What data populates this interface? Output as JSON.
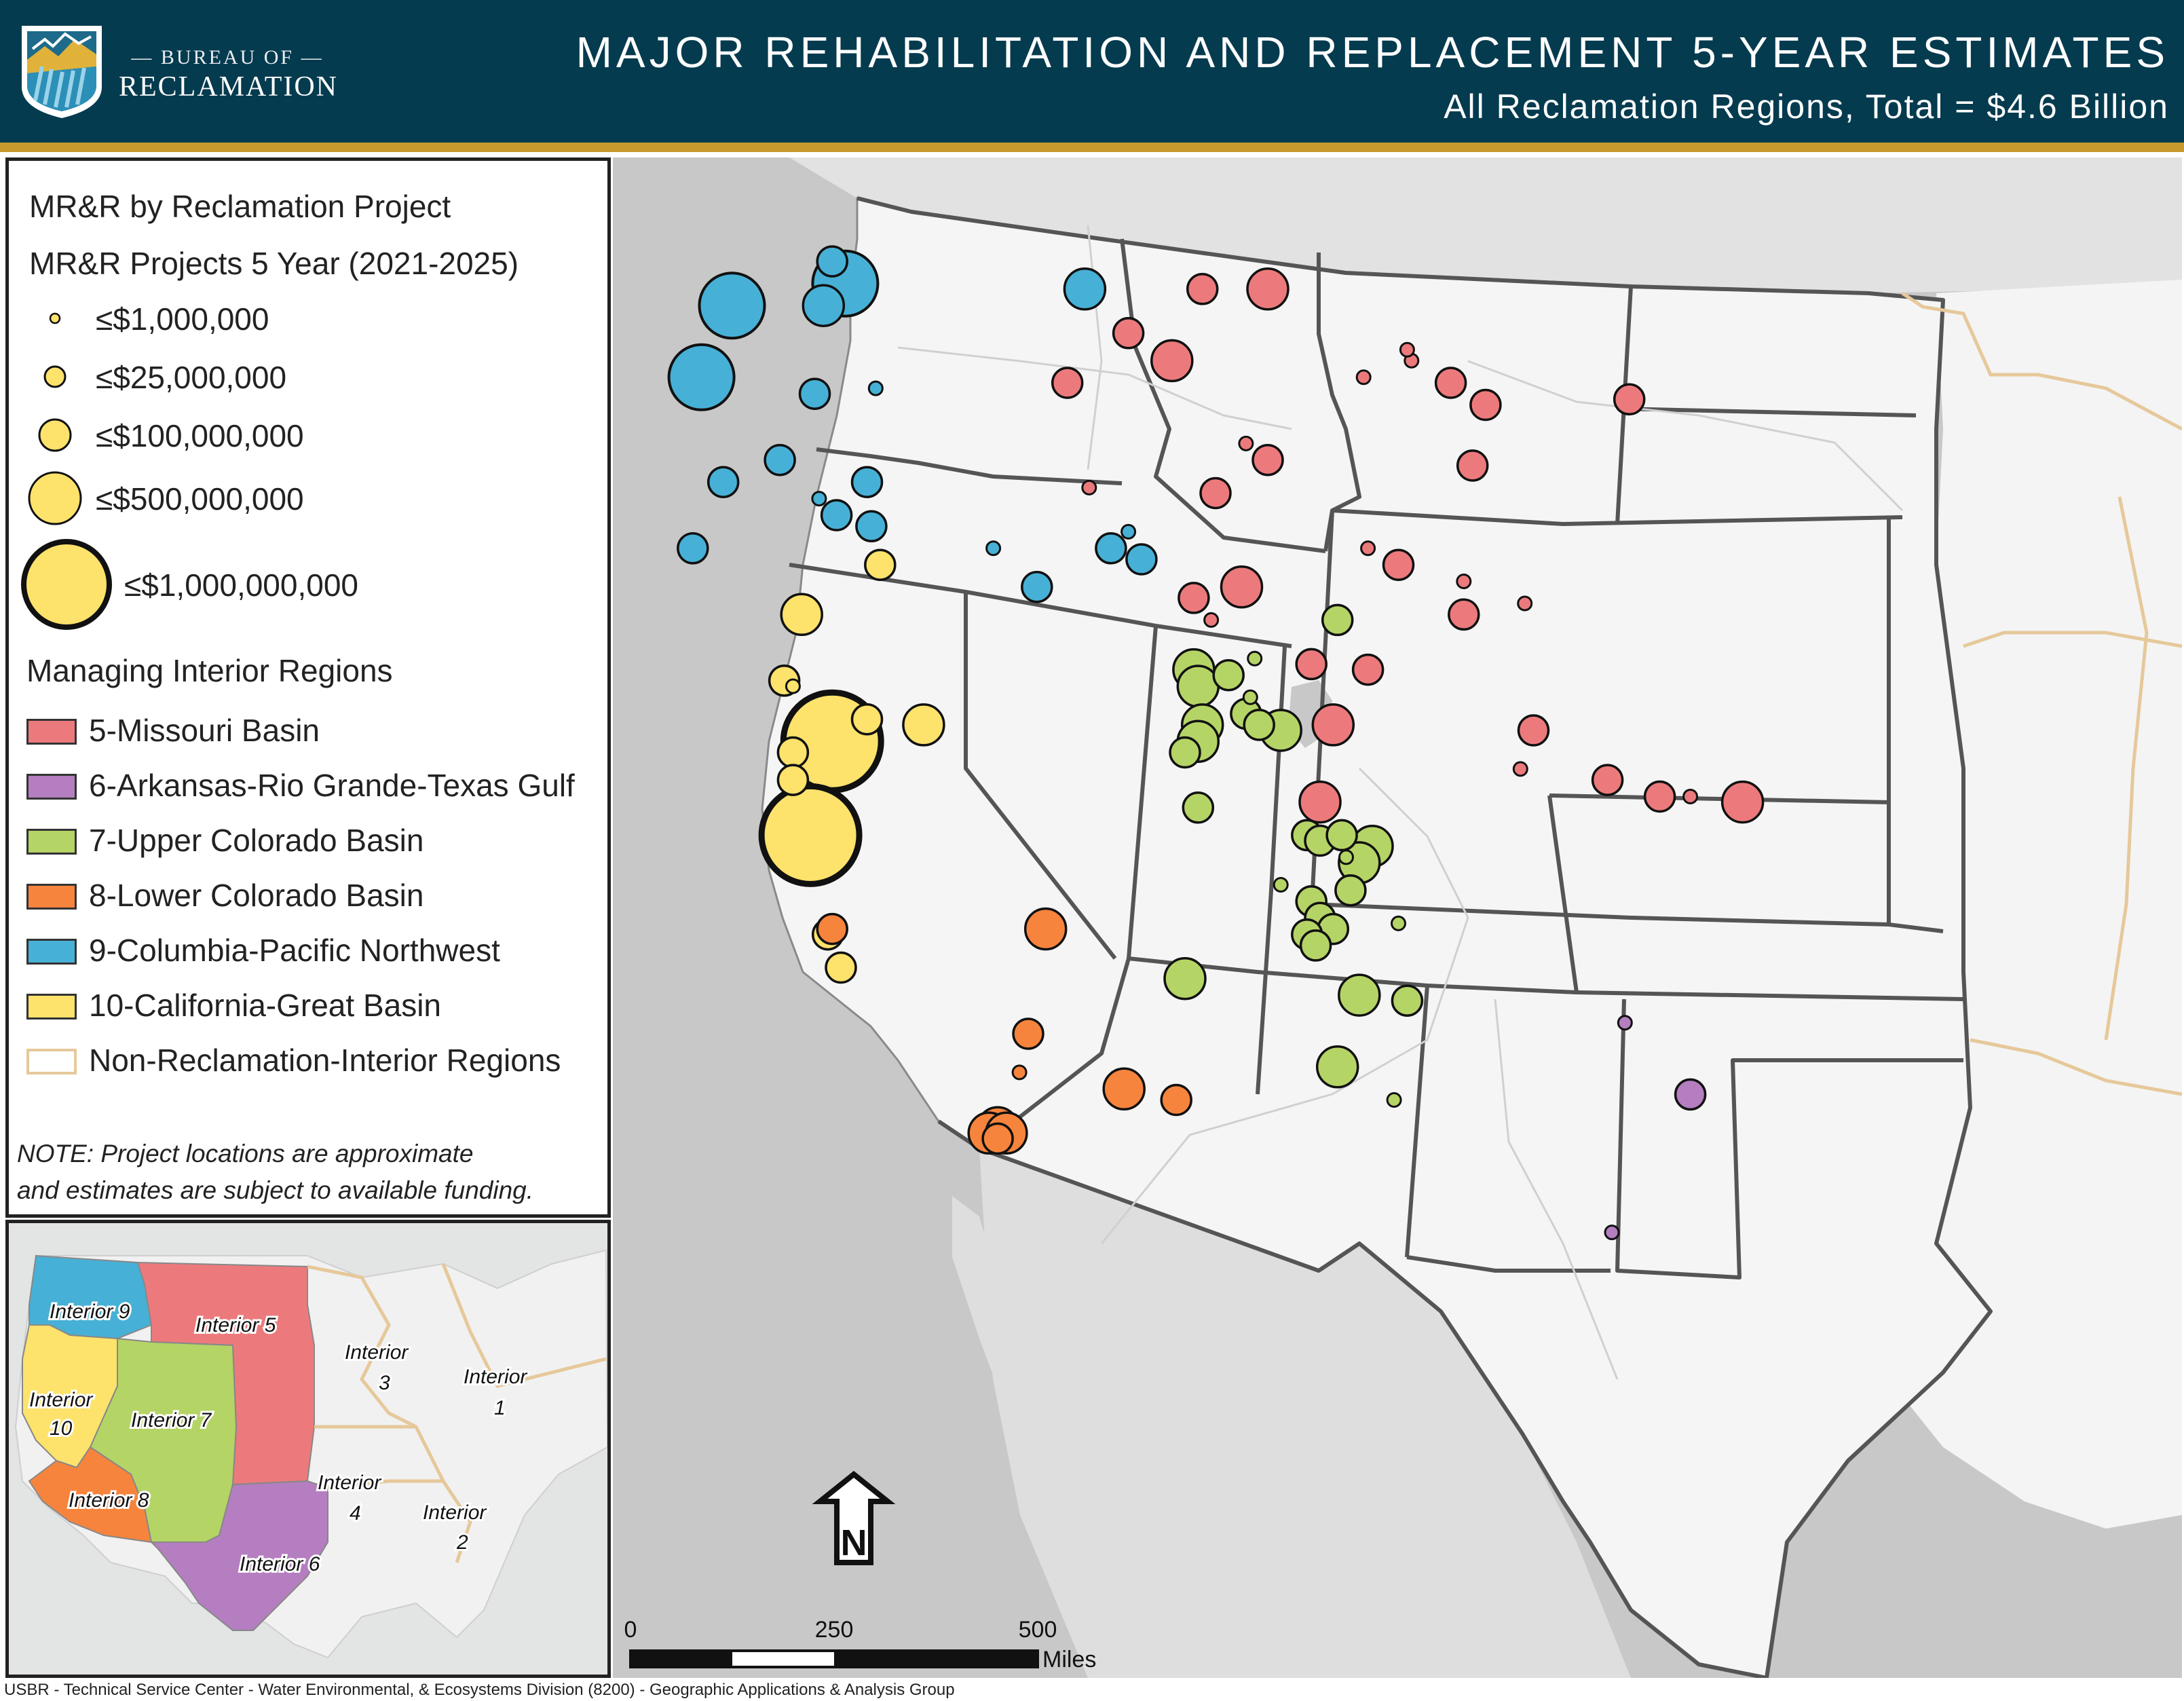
{
  "header": {
    "agency_top": "— BUREAU OF —",
    "agency_name": "RECLAMATION",
    "title": "MAJOR REHABILITATION AND REPLACEMENT 5-YEAR ESTIMATES",
    "subtitle": "All Reclamation Regions, Total = $4.6 Billion",
    "background_color": "#053b4f",
    "accent_color": "#c79a2d"
  },
  "legend": {
    "title": "MR&R by Reclamation Project",
    "subtitle": "MR&R Projects 5 Year (2021-2025)",
    "size_classes": [
      "≤$1,000,000",
      "≤$25,000,000",
      "≤$100,000,000",
      "≤$500,000,000",
      "≤$1,000,000,000"
    ],
    "regions_title": "Managing Interior Regions",
    "regions": [
      {
        "label": "5-Missouri Basin",
        "color": "#ec7a7c"
      },
      {
        "label": "6-Arkansas-Rio Grande-Texas Gulf",
        "color": "#b47ec0"
      },
      {
        "label": "7-Upper Colorado Basin",
        "color": "#b5d466"
      },
      {
        "label": "8-Lower Colorado Basin",
        "color": "#f7843c"
      },
      {
        "label": "9-Columbia-Pacific Northwest",
        "color": "#47b0d6"
      },
      {
        "label": "10-California-Great Basin",
        "color": "#fde26c"
      },
      {
        "label": "Non-Reclamation-Interior Regions",
        "color": "#e6c89a"
      }
    ],
    "note_line1": "NOTE: Project locations are approximate",
    "note_line2": "and estimates are subject to available funding."
  },
  "inset_labels": {
    "interior_9": "Interior 9",
    "interior_5": "Interior 5",
    "interior_3": "Interior",
    "interior_3_num": "3",
    "interior_1": "Interior",
    "interior_1_num": "1",
    "interior_10": "Interior",
    "interior_10_num": "10",
    "interior_7": "Interior 7",
    "interior_8": "Interior 8",
    "interior_4": "Interior",
    "interior_4_num": "4",
    "interior_2": "Interior",
    "interior_2_num": "2",
    "interior_6": "Interior 6"
  },
  "scale_bar": {
    "tick_0": "0",
    "tick_250": "250",
    "tick_500": "500",
    "unit": "Miles"
  },
  "north_arrow_label": "N",
  "credit": "USBR - Technical Service Center - Water Environmental, & Ecosystems Division (8200) - Geographic Applications & Analysis Group",
  "map_points": [
    {
      "region": 9,
      "size": 4,
      "lat": 47.9,
      "lon": -123.7
    },
    {
      "region": 9,
      "size": 2,
      "lat": 48.7,
      "lon": -121.4
    },
    {
      "region": 9,
      "size": 4,
      "lat": 48.3,
      "lon": -121.1
    },
    {
      "region": 9,
      "size": 3,
      "lat": 47.9,
      "lon": -121.6
    },
    {
      "region": 9,
      "size": 4,
      "lat": 46.6,
      "lon": -124.4
    },
    {
      "region": 9,
      "size": 2,
      "lat": 46.3,
      "lon": -121.8
    },
    {
      "region": 9,
      "size": 1,
      "lat": 46.4,
      "lon": -120.4
    },
    {
      "region": 9,
      "size": 3,
      "lat": 48.2,
      "lon": -115.6
    },
    {
      "region": 9,
      "size": 2,
      "lat": 45.1,
      "lon": -122.6
    },
    {
      "region": 9,
      "size": 2,
      "lat": 44.7,
      "lon": -123.9
    },
    {
      "region": 9,
      "size": 2,
      "lat": 44.7,
      "lon": -120.6
    },
    {
      "region": 9,
      "size": 1,
      "lat": 44.4,
      "lon": -121.7
    },
    {
      "region": 9,
      "size": 2,
      "lat": 44.1,
      "lon": -121.3
    },
    {
      "region": 9,
      "size": 2,
      "lat": 43.9,
      "lon": -120.5
    },
    {
      "region": 9,
      "size": 1,
      "lat": 43.5,
      "lon": -117.7
    },
    {
      "region": 9,
      "size": 2,
      "lat": 43.5,
      "lon": -115.0
    },
    {
      "region": 9,
      "size": 1,
      "lat": 43.8,
      "lon": -114.6
    },
    {
      "region": 9,
      "size": 2,
      "lat": 43.3,
      "lon": -114.3
    },
    {
      "region": 9,
      "size": 2,
      "lat": 42.8,
      "lon": -116.7
    },
    {
      "region": 9,
      "size": 2,
      "lat": 43.5,
      "lon": -124.6
    },
    {
      "region": 5,
      "size": 2,
      "lat": 48.2,
      "lon": -112.9
    },
    {
      "region": 5,
      "size": 3,
      "lat": 48.2,
      "lon": -111.4
    },
    {
      "region": 5,
      "size": 2,
      "lat": 47.4,
      "lon": -114.6
    },
    {
      "region": 5,
      "size": 3,
      "lat": 46.9,
      "lon": -113.6
    },
    {
      "region": 5,
      "size": 2,
      "lat": 46.5,
      "lon": -116.0
    },
    {
      "region": 5,
      "size": 1,
      "lat": 46.9,
      "lon": -108.1
    },
    {
      "region": 5,
      "size": 1,
      "lat": 47.1,
      "lon": -108.2
    },
    {
      "region": 5,
      "size": 1,
      "lat": 46.6,
      "lon": -109.2
    },
    {
      "region": 5,
      "size": 2,
      "lat": 46.5,
      "lon": -107.2
    },
    {
      "region": 5,
      "size": 2,
      "lat": 46.1,
      "lon": -106.4
    },
    {
      "region": 5,
      "size": 2,
      "lat": 46.2,
      "lon": -103.1
    },
    {
      "region": 5,
      "size": 1,
      "lat": 45.4,
      "lon": -111.9
    },
    {
      "region": 5,
      "size": 2,
      "lat": 45.1,
      "lon": -111.4
    },
    {
      "region": 5,
      "size": 1,
      "lat": 44.6,
      "lon": -115.5
    },
    {
      "region": 5,
      "size": 2,
      "lat": 44.5,
      "lon": -112.6
    },
    {
      "region": 5,
      "size": 2,
      "lat": 45.0,
      "lon": -106.7
    },
    {
      "region": 5,
      "size": 2,
      "lat": 43.2,
      "lon": -108.4
    },
    {
      "region": 5,
      "size": 1,
      "lat": 43.5,
      "lon": -109.1
    },
    {
      "region": 5,
      "size": 2,
      "lat": 42.6,
      "lon": -113.1
    },
    {
      "region": 5,
      "size": 3,
      "lat": 42.8,
      "lon": -112.0
    },
    {
      "region": 5,
      "size": 1,
      "lat": 42.2,
      "lon": -112.7
    },
    {
      "region": 5,
      "size": 2,
      "lat": 41.4,
      "lon": -110.4
    },
    {
      "region": 5,
      "size": 2,
      "lat": 41.3,
      "lon": -109.1
    },
    {
      "region": 5,
      "size": 1,
      "lat": 42.9,
      "lon": -106.9
    },
    {
      "region": 5,
      "size": 1,
      "lat": 42.5,
      "lon": -105.5
    },
    {
      "region": 5,
      "size": 2,
      "lat": 42.3,
      "lon": -106.9
    },
    {
      "region": 5,
      "size": 3,
      "lat": 40.3,
      "lon": -109.9
    },
    {
      "region": 5,
      "size": 2,
      "lat": 40.2,
      "lon": -105.3
    },
    {
      "region": 5,
      "size": 1,
      "lat": 39.5,
      "lon": -105.6
    },
    {
      "region": 5,
      "size": 2,
      "lat": 39.3,
      "lon": -103.6
    },
    {
      "region": 5,
      "size": 2,
      "lat": 39.0,
      "lon": -102.4
    },
    {
      "region": 5,
      "size": 1,
      "lat": 39.0,
      "lon": -101.7
    },
    {
      "region": 5,
      "size": 3,
      "lat": 38.9,
      "lon": -100.5
    },
    {
      "region": 5,
      "size": 3,
      "lat": 38.9,
      "lon": -110.2
    },
    {
      "region": 7,
      "size": 3,
      "lat": 41.3,
      "lon": -113.1
    },
    {
      "region": 7,
      "size": 3,
      "lat": 41.0,
      "lon": -113.0
    },
    {
      "region": 7,
      "size": 1,
      "lat": 40.8,
      "lon": -111.8
    },
    {
      "region": 7,
      "size": 2,
      "lat": 41.2,
      "lon": -112.3
    },
    {
      "region": 7,
      "size": 1,
      "lat": 41.5,
      "lon": -111.7
    },
    {
      "region": 7,
      "size": 2,
      "lat": 40.5,
      "lon": -111.9
    },
    {
      "region": 7,
      "size": 2,
      "lat": 40.3,
      "lon": -111.6
    },
    {
      "region": 7,
      "size": 3,
      "lat": 40.2,
      "lon": -111.1
    },
    {
      "region": 7,
      "size": 3,
      "lat": 40.3,
      "lon": -112.9
    },
    {
      "region": 7,
      "size": 3,
      "lat": 40.0,
      "lon": -113.0
    },
    {
      "region": 7,
      "size": 2,
      "lat": 39.8,
      "lon": -113.3
    },
    {
      "region": 7,
      "size": 2,
      "lat": 38.8,
      "lon": -113.0
    },
    {
      "region": 7,
      "size": 2,
      "lat": 42.2,
      "lon": -109.8
    },
    {
      "region": 7,
      "size": 2,
      "lat": 38.3,
      "lon": -110.5
    },
    {
      "region": 7,
      "size": 2,
      "lat": 38.2,
      "lon": -110.2
    },
    {
      "region": 7,
      "size": 2,
      "lat": 38.3,
      "lon": -109.7
    },
    {
      "region": 7,
      "size": 3,
      "lat": 38.1,
      "lon": -109.0
    },
    {
      "region": 7,
      "size": 1,
      "lat": 37.9,
      "lon": -109.6
    },
    {
      "region": 7,
      "size": 3,
      "lat": 37.8,
      "lon": -109.3
    },
    {
      "region": 7,
      "size": 1,
      "lat": 37.4,
      "lon": -111.1
    },
    {
      "region": 7,
      "size": 2,
      "lat": 37.3,
      "lon": -109.5
    },
    {
      "region": 7,
      "size": 2,
      "lat": 37.1,
      "lon": -110.4
    },
    {
      "region": 7,
      "size": 2,
      "lat": 36.8,
      "lon": -110.2
    },
    {
      "region": 7,
      "size": 2,
      "lat": 36.6,
      "lon": -109.9
    },
    {
      "region": 7,
      "size": 2,
      "lat": 36.5,
      "lon": -110.5
    },
    {
      "region": 7,
      "size": 2,
      "lat": 36.3,
      "lon": -110.3
    },
    {
      "region": 7,
      "size": 1,
      "lat": 36.7,
      "lon": -108.4
    },
    {
      "region": 7,
      "size": 3,
      "lat": 35.7,
      "lon": -113.3
    },
    {
      "region": 7,
      "size": 3,
      "lat": 35.4,
      "lon": -109.3
    },
    {
      "region": 7,
      "size": 2,
      "lat": 35.3,
      "lon": -108.2
    },
    {
      "region": 7,
      "size": 3,
      "lat": 34.1,
      "lon": -109.8
    },
    {
      "region": 7,
      "size": 1,
      "lat": 33.5,
      "lon": -108.5
    },
    {
      "region": 10,
      "size": 2,
      "lat": 43.2,
      "lon": -120.3
    },
    {
      "region": 10,
      "size": 3,
      "lat": 42.3,
      "lon": -122.1
    },
    {
      "region": 10,
      "size": 2,
      "lat": 41.1,
      "lon": -122.5
    },
    {
      "region": 10,
      "size": 1,
      "lat": 41.0,
      "lon": -122.3
    },
    {
      "region": 10,
      "size": 5,
      "lat": 40.0,
      "lon": -121.4
    },
    {
      "region": 10,
      "size": 2,
      "lat": 40.4,
      "lon": -120.6
    },
    {
      "region": 10,
      "size": 3,
      "lat": 40.3,
      "lon": -119.3
    },
    {
      "region": 10,
      "size": 2,
      "lat": 39.8,
      "lon": -122.3
    },
    {
      "region": 10,
      "size": 2,
      "lat": 39.3,
      "lon": -122.3
    },
    {
      "region": 10,
      "size": 5,
      "lat": 38.3,
      "lon": -121.9
    },
    {
      "region": 10,
      "size": 2,
      "lat": 36.5,
      "lon": -121.5
    },
    {
      "region": 10,
      "size": 2,
      "lat": 35.9,
      "lon": -121.2
    },
    {
      "region": 8,
      "size": 2,
      "lat": 36.6,
      "lon": -121.4
    },
    {
      "region": 8,
      "size": 3,
      "lat": 36.6,
      "lon": -116.5
    },
    {
      "region": 8,
      "size": 2,
      "lat": 34.7,
      "lon": -116.9
    },
    {
      "region": 8,
      "size": 1,
      "lat": 34.0,
      "lon": -117.1
    },
    {
      "region": 8,
      "size": 3,
      "lat": 33.7,
      "lon": -114.7
    },
    {
      "region": 8,
      "size": 2,
      "lat": 33.5,
      "lon": -113.5
    },
    {
      "region": 8,
      "size": 3,
      "lat": 33.0,
      "lon": -117.6
    },
    {
      "region": 8,
      "size": 3,
      "lat": 32.9,
      "lon": -117.8
    },
    {
      "region": 8,
      "size": 3,
      "lat": 32.9,
      "lon": -117.4
    },
    {
      "region": 8,
      "size": 2,
      "lat": 32.8,
      "lon": -117.6
    },
    {
      "region": 6,
      "size": 1,
      "lat": 34.9,
      "lon": -103.2
    },
    {
      "region": 6,
      "size": 2,
      "lat": 33.6,
      "lon": -101.7
    },
    {
      "region": 6,
      "size": 1,
      "lat": 31.1,
      "lon": -103.5
    }
  ]
}
